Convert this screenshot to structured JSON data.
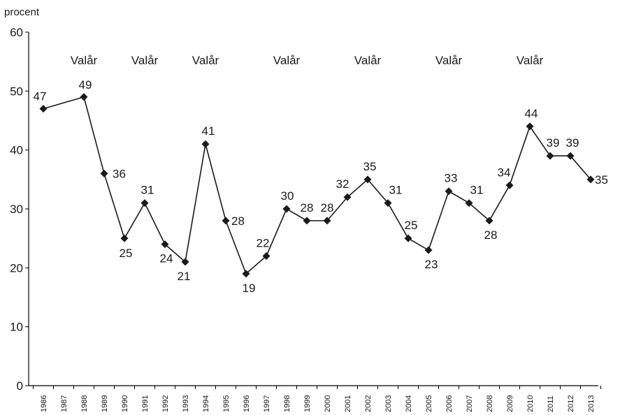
{
  "chart_data": {
    "type": "line",
    "ylabel": "procent",
    "xlabel": "",
    "ylim": [
      0,
      60
    ],
    "yticks": [
      0,
      10,
      20,
      30,
      40,
      50,
      60
    ],
    "grid": false,
    "x": [
      "1986",
      "1987",
      "1988",
      "1989",
      "1990",
      "1991",
      "1992",
      "1993",
      "1994",
      "1995",
      "1996",
      "1997",
      "1998",
      "1999",
      "2000",
      "2001",
      "2002",
      "2003",
      "2004",
      "2005",
      "2006",
      "2007",
      "2008",
      "2009",
      "2010",
      "2011",
      "2012",
      "2013"
    ],
    "series": [
      {
        "points": [
          {
            "x": "1986",
            "y": 47
          },
          {
            "x": "1988",
            "y": 49
          },
          {
            "x": "1989",
            "y": 36
          },
          {
            "x": "1990",
            "y": 25
          },
          {
            "x": "1991",
            "y": 31
          },
          {
            "x": "1992",
            "y": 24
          },
          {
            "x": "1993",
            "y": 21
          },
          {
            "x": "1994",
            "y": 41
          },
          {
            "x": "1995",
            "y": 28
          },
          {
            "x": "1996",
            "y": 19
          },
          {
            "x": "1997",
            "y": 22
          },
          {
            "x": "1998",
            "y": 30
          },
          {
            "x": "1999",
            "y": 28
          },
          {
            "x": "2000",
            "y": 28
          },
          {
            "x": "2001",
            "y": 32
          },
          {
            "x": "2002",
            "y": 35
          },
          {
            "x": "2003",
            "y": 31
          },
          {
            "x": "2004",
            "y": 25
          },
          {
            "x": "2005",
            "y": 23
          },
          {
            "x": "2006",
            "y": 33
          },
          {
            "x": "2007",
            "y": 31
          },
          {
            "x": "2008",
            "y": 28
          },
          {
            "x": "2009",
            "y": 34
          },
          {
            "x": "2010",
            "y": 44
          },
          {
            "x": "2011",
            "y": 39
          },
          {
            "x": "2012",
            "y": 39
          },
          {
            "x": "2013",
            "y": 35
          }
        ]
      }
    ],
    "annotations": [
      {
        "text": "Valår",
        "x": "1988"
      },
      {
        "text": "Valår",
        "x": "1991"
      },
      {
        "text": "Valår",
        "x": "1994"
      },
      {
        "text": "Valår",
        "x": "1998"
      },
      {
        "text": "Valår",
        "x": "2002"
      },
      {
        "text": "Valår",
        "x": "2006"
      },
      {
        "text": "Valår",
        "x": "2010"
      }
    ],
    "colors": {
      "series": "#1a1a1a",
      "axis": "#000000"
    }
  }
}
